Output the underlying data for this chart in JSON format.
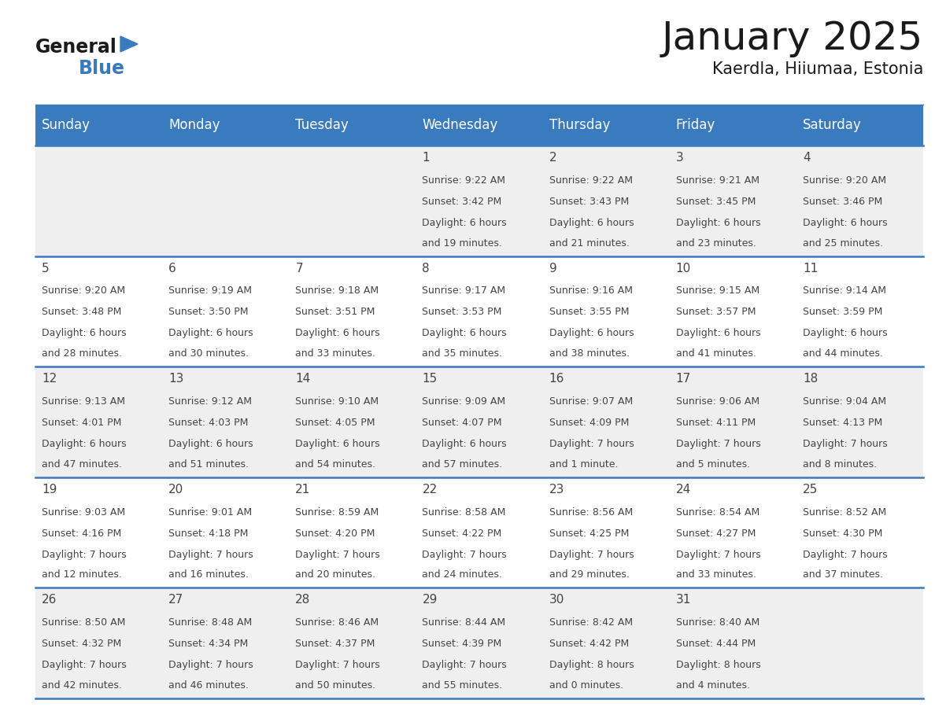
{
  "title": "January 2025",
  "subtitle": "Kaerdla, Hiiumaa, Estonia",
  "header_color": "#3a7bbf",
  "header_text_color": "#ffffff",
  "bg_color": "#ffffff",
  "cell_bg_even": "#efefef",
  "cell_bg_odd": "#ffffff",
  "day_headers": [
    "Sunday",
    "Monday",
    "Tuesday",
    "Wednesday",
    "Thursday",
    "Friday",
    "Saturday"
  ],
  "weeks": [
    [
      {
        "day": "",
        "sunrise": "",
        "sunset": "",
        "daylight": ""
      },
      {
        "day": "",
        "sunrise": "",
        "sunset": "",
        "daylight": ""
      },
      {
        "day": "",
        "sunrise": "",
        "sunset": "",
        "daylight": ""
      },
      {
        "day": "1",
        "sunrise": "9:22 AM",
        "sunset": "3:42 PM",
        "daylight": "6 hours\nand 19 minutes."
      },
      {
        "day": "2",
        "sunrise": "9:22 AM",
        "sunset": "3:43 PM",
        "daylight": "6 hours\nand 21 minutes."
      },
      {
        "day": "3",
        "sunrise": "9:21 AM",
        "sunset": "3:45 PM",
        "daylight": "6 hours\nand 23 minutes."
      },
      {
        "day": "4",
        "sunrise": "9:20 AM",
        "sunset": "3:46 PM",
        "daylight": "6 hours\nand 25 minutes."
      }
    ],
    [
      {
        "day": "5",
        "sunrise": "9:20 AM",
        "sunset": "3:48 PM",
        "daylight": "6 hours\nand 28 minutes."
      },
      {
        "day": "6",
        "sunrise": "9:19 AM",
        "sunset": "3:50 PM",
        "daylight": "6 hours\nand 30 minutes."
      },
      {
        "day": "7",
        "sunrise": "9:18 AM",
        "sunset": "3:51 PM",
        "daylight": "6 hours\nand 33 minutes."
      },
      {
        "day": "8",
        "sunrise": "9:17 AM",
        "sunset": "3:53 PM",
        "daylight": "6 hours\nand 35 minutes."
      },
      {
        "day": "9",
        "sunrise": "9:16 AM",
        "sunset": "3:55 PM",
        "daylight": "6 hours\nand 38 minutes."
      },
      {
        "day": "10",
        "sunrise": "9:15 AM",
        "sunset": "3:57 PM",
        "daylight": "6 hours\nand 41 minutes."
      },
      {
        "day": "11",
        "sunrise": "9:14 AM",
        "sunset": "3:59 PM",
        "daylight": "6 hours\nand 44 minutes."
      }
    ],
    [
      {
        "day": "12",
        "sunrise": "9:13 AM",
        "sunset": "4:01 PM",
        "daylight": "6 hours\nand 47 minutes."
      },
      {
        "day": "13",
        "sunrise": "9:12 AM",
        "sunset": "4:03 PM",
        "daylight": "6 hours\nand 51 minutes."
      },
      {
        "day": "14",
        "sunrise": "9:10 AM",
        "sunset": "4:05 PM",
        "daylight": "6 hours\nand 54 minutes."
      },
      {
        "day": "15",
        "sunrise": "9:09 AM",
        "sunset": "4:07 PM",
        "daylight": "6 hours\nand 57 minutes."
      },
      {
        "day": "16",
        "sunrise": "9:07 AM",
        "sunset": "4:09 PM",
        "daylight": "7 hours\nand 1 minute."
      },
      {
        "day": "17",
        "sunrise": "9:06 AM",
        "sunset": "4:11 PM",
        "daylight": "7 hours\nand 5 minutes."
      },
      {
        "day": "18",
        "sunrise": "9:04 AM",
        "sunset": "4:13 PM",
        "daylight": "7 hours\nand 8 minutes."
      }
    ],
    [
      {
        "day": "19",
        "sunrise": "9:03 AM",
        "sunset": "4:16 PM",
        "daylight": "7 hours\nand 12 minutes."
      },
      {
        "day": "20",
        "sunrise": "9:01 AM",
        "sunset": "4:18 PM",
        "daylight": "7 hours\nand 16 minutes."
      },
      {
        "day": "21",
        "sunrise": "8:59 AM",
        "sunset": "4:20 PM",
        "daylight": "7 hours\nand 20 minutes."
      },
      {
        "day": "22",
        "sunrise": "8:58 AM",
        "sunset": "4:22 PM",
        "daylight": "7 hours\nand 24 minutes."
      },
      {
        "day": "23",
        "sunrise": "8:56 AM",
        "sunset": "4:25 PM",
        "daylight": "7 hours\nand 29 minutes."
      },
      {
        "day": "24",
        "sunrise": "8:54 AM",
        "sunset": "4:27 PM",
        "daylight": "7 hours\nand 33 minutes."
      },
      {
        "day": "25",
        "sunrise": "8:52 AM",
        "sunset": "4:30 PM",
        "daylight": "7 hours\nand 37 minutes."
      }
    ],
    [
      {
        "day": "26",
        "sunrise": "8:50 AM",
        "sunset": "4:32 PM",
        "daylight": "7 hours\nand 42 minutes."
      },
      {
        "day": "27",
        "sunrise": "8:48 AM",
        "sunset": "4:34 PM",
        "daylight": "7 hours\nand 46 minutes."
      },
      {
        "day": "28",
        "sunrise": "8:46 AM",
        "sunset": "4:37 PM",
        "daylight": "7 hours\nand 50 minutes."
      },
      {
        "day": "29",
        "sunrise": "8:44 AM",
        "sunset": "4:39 PM",
        "daylight": "7 hours\nand 55 minutes."
      },
      {
        "day": "30",
        "sunrise": "8:42 AM",
        "sunset": "4:42 PM",
        "daylight": "8 hours\nand 0 minutes."
      },
      {
        "day": "31",
        "sunrise": "8:40 AM",
        "sunset": "4:44 PM",
        "daylight": "8 hours\nand 4 minutes."
      },
      {
        "day": "",
        "sunrise": "",
        "sunset": "",
        "daylight": ""
      }
    ]
  ],
  "logo_text_general": "General",
  "logo_text_blue": "Blue",
  "logo_triangle_color": "#3a7bbf",
  "text_color": "#444444",
  "border_color": "#3a7bbf",
  "title_fontsize": 36,
  "subtitle_fontsize": 15,
  "header_font_size": 12,
  "day_num_font_size": 11,
  "cell_font_size": 9
}
